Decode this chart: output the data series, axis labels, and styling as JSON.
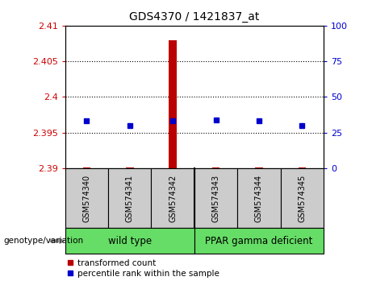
{
  "title": "GDS4370 / 1421837_at",
  "samples": [
    "GSM574340",
    "GSM574341",
    "GSM574342",
    "GSM574343",
    "GSM574344",
    "GSM574345"
  ],
  "group_labels": [
    "wild type",
    "PPAR gamma deficient"
  ],
  "wt_count": 3,
  "ppar_count": 3,
  "transformed_counts": [
    2.3901,
    2.3901,
    2.408,
    2.3901,
    2.3901,
    2.3901
  ],
  "percentile_ranks": [
    33,
    30,
    33,
    34,
    33,
    30
  ],
  "ylim_left": [
    2.39,
    2.41
  ],
  "ylim_right": [
    0,
    100
  ],
  "yticks_left": [
    2.39,
    2.395,
    2.4,
    2.405,
    2.41
  ],
  "yticks_right": [
    0,
    25,
    50,
    75,
    100
  ],
  "ytick_labels_left": [
    "2.39",
    "2.395",
    "2.4",
    "2.405",
    "2.41"
  ],
  "ytick_labels_right": [
    "0",
    "25",
    "50",
    "75",
    "100"
  ],
  "left_color": "#cc0000",
  "right_color": "#0000cc",
  "bar_color": "#bb0000",
  "dot_color": "#0000cc",
  "grid_color": "#000000",
  "sample_box_color": "#cccccc",
  "group_box_color": "#66dd66",
  "legend_red_label": "transformed count",
  "legend_blue_label": "percentile rank within the sample",
  "genotype_label": "genotype/variation"
}
